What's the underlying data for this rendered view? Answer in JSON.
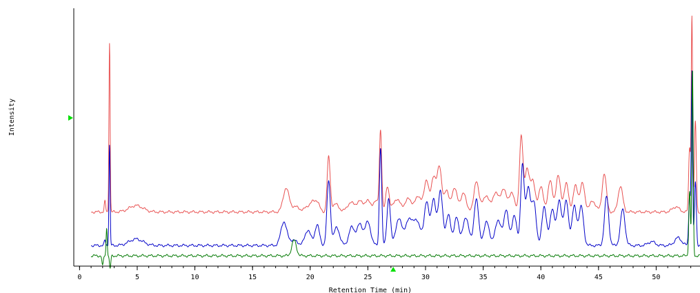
{
  "chart_data": {
    "type": "line",
    "title": "",
    "xlabel": "Retention Time (min)",
    "ylabel": "Intensity",
    "xlim": [
      -0.5,
      53.8
    ],
    "ylim": [
      0,
      100
    ],
    "x_ticks": [
      0,
      5,
      10,
      15,
      20,
      25,
      30,
      35,
      40,
      45,
      50
    ],
    "minor_tick_step": 1,
    "grid": false,
    "legend": "none",
    "markers": [
      {
        "axis": "y",
        "value": 57.5,
        "color": "#00e000",
        "shape": "triangle-right"
      },
      {
        "axis": "x",
        "value": 27.2,
        "color": "#00e000",
        "shape": "triangle-up"
      }
    ],
    "series": [
      {
        "color": "#e85050",
        "baseline": 21,
        "peaks": [
          [
            2.2,
            4,
            0.06
          ],
          [
            2.6,
            66,
            0.05
          ],
          [
            4.9,
            2.5,
            0.6
          ],
          [
            17.9,
            9,
            0.25
          ],
          [
            18.7,
            2,
            0.4
          ],
          [
            19.8,
            2,
            0.25
          ],
          [
            20.2,
            3,
            0.2
          ],
          [
            20.6,
            4,
            0.2
          ],
          [
            21.6,
            21,
            0.13
          ],
          [
            22.2,
            3,
            0.3
          ],
          [
            23.5,
            3.5,
            0.3
          ],
          [
            24.3,
            4,
            0.3
          ],
          [
            25.0,
            4,
            0.25
          ],
          [
            25.7,
            4,
            0.25
          ],
          [
            26.1,
            31,
            0.1
          ],
          [
            26.7,
            10,
            0.15
          ],
          [
            27.5,
            5,
            0.3
          ],
          [
            28.5,
            5,
            0.3
          ],
          [
            29.4,
            6,
            0.3
          ],
          [
            30.1,
            12,
            0.2
          ],
          [
            30.7,
            13,
            0.2
          ],
          [
            31.2,
            17,
            0.2
          ],
          [
            31.8,
            8,
            0.2
          ],
          [
            32.5,
            9,
            0.25
          ],
          [
            33.3,
            7,
            0.25
          ],
          [
            34.4,
            12,
            0.2
          ],
          [
            35.2,
            6,
            0.3
          ],
          [
            36.1,
            7,
            0.3
          ],
          [
            36.8,
            8,
            0.25
          ],
          [
            37.5,
            7,
            0.25
          ],
          [
            38.3,
            29,
            0.15
          ],
          [
            38.8,
            16,
            0.2
          ],
          [
            39.3,
            12,
            0.2
          ],
          [
            40.0,
            10,
            0.2
          ],
          [
            40.8,
            12,
            0.2
          ],
          [
            41.5,
            14,
            0.2
          ],
          [
            42.2,
            11,
            0.2
          ],
          [
            43.0,
            10,
            0.2
          ],
          [
            43.6,
            11,
            0.2
          ],
          [
            44.5,
            4,
            0.3
          ],
          [
            45.5,
            15,
            0.18
          ],
          [
            46.9,
            10,
            0.2
          ],
          [
            51.7,
            2,
            0.3
          ],
          [
            52.9,
            25,
            0.08
          ],
          [
            53.1,
            75,
            0.06
          ],
          [
            53.4,
            35,
            0.08
          ]
        ]
      },
      {
        "color": "#0000c8",
        "baseline": 8,
        "peaks": [
          [
            2.2,
            2,
            0.06
          ],
          [
            2.6,
            39,
            0.05
          ],
          [
            4.9,
            2.5,
            0.6
          ],
          [
            17.7,
            9,
            0.25
          ],
          [
            18.5,
            2,
            0.4
          ],
          [
            19.8,
            6,
            0.25
          ],
          [
            20.6,
            8,
            0.2
          ],
          [
            21.6,
            25,
            0.15
          ],
          [
            22.3,
            7,
            0.25
          ],
          [
            23.6,
            7,
            0.25
          ],
          [
            24.3,
            8,
            0.25
          ],
          [
            25.0,
            9,
            0.25
          ],
          [
            26.1,
            38,
            0.1
          ],
          [
            26.8,
            18,
            0.15
          ],
          [
            27.7,
            10,
            0.3
          ],
          [
            28.6,
            10,
            0.3
          ],
          [
            29.3,
            9,
            0.3
          ],
          [
            30.1,
            17,
            0.2
          ],
          [
            30.7,
            18,
            0.2
          ],
          [
            31.3,
            21,
            0.2
          ],
          [
            32.0,
            12,
            0.2
          ],
          [
            32.7,
            11,
            0.2
          ],
          [
            33.5,
            11,
            0.25
          ],
          [
            34.4,
            18,
            0.2
          ],
          [
            35.3,
            9,
            0.25
          ],
          [
            36.3,
            10,
            0.25
          ],
          [
            37.0,
            14,
            0.2
          ],
          [
            37.7,
            12,
            0.2
          ],
          [
            38.4,
            31,
            0.15
          ],
          [
            38.9,
            22,
            0.2
          ],
          [
            39.4,
            16,
            0.2
          ],
          [
            40.3,
            15,
            0.2
          ],
          [
            41.0,
            14,
            0.2
          ],
          [
            41.6,
            17,
            0.2
          ],
          [
            42.2,
            17,
            0.2
          ],
          [
            42.9,
            15,
            0.2
          ],
          [
            43.5,
            15,
            0.2
          ],
          [
            45.7,
            19,
            0.18
          ],
          [
            47.1,
            14,
            0.2
          ],
          [
            49.6,
            1.5,
            0.3
          ],
          [
            51.9,
            3,
            0.3
          ],
          [
            52.9,
            20,
            0.08
          ],
          [
            53.1,
            67,
            0.06
          ],
          [
            53.4,
            25,
            0.08
          ]
        ]
      },
      {
        "color": "#007800",
        "baseline": 4,
        "peaks": [
          [
            2.0,
            -4,
            0.06
          ],
          [
            2.35,
            11,
            0.05
          ],
          [
            2.65,
            -5,
            0.06
          ],
          [
            18.6,
            6,
            0.2
          ],
          [
            52.9,
            25,
            0.07
          ],
          [
            53.15,
            72,
            0.06
          ]
        ]
      }
    ]
  }
}
